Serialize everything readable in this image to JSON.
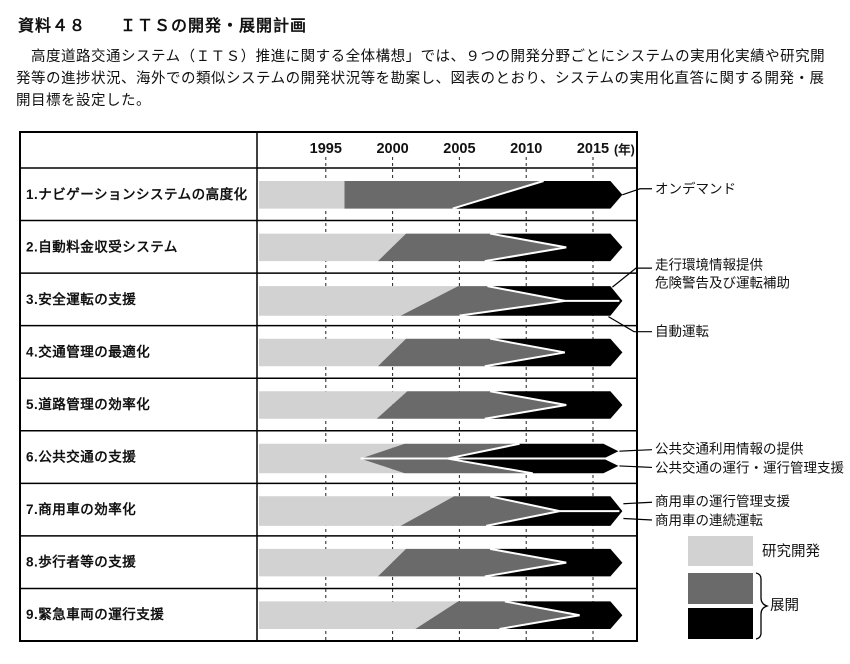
{
  "page": {
    "title": "資料４８　　ＩＴＳの開発・展開計画",
    "intro": "　高度道路交通システム（ＩＴＳ）推進に関する全体構想」では、９つの開発分野ごとにシステムの実用化実績や研究開発等の進捗状況、海外での類似システムの開発状況等を勘案し、図表のとおり、システムの実用化直答に関する開発・展開目標を設定した。"
  },
  "chart_data": {
    "type": "gantt",
    "title": "ＩＴＳの開発・展開計画（開発分野別タイムライン）",
    "x_axis": {
      "ticks": [
        1995,
        2000,
        2005,
        2010,
        2015
      ],
      "unit_label": "(年)",
      "range": [
        1990,
        2018
      ],
      "gridlines": "dashed"
    },
    "colors": {
      "research": "#d2d2d2",
      "deployment_mid": "#6a6a6a",
      "deployment_final": "#000000",
      "separator": "#ffffff"
    },
    "legend": {
      "items": [
        {
          "label": "研究開発",
          "color": "#d2d2d2"
        },
        {
          "label": "展開",
          "colors": [
            "#6a6a6a",
            "#000000"
          ]
        }
      ]
    },
    "rows": [
      {
        "label": "1.ナビゲーションシステムの高度化",
        "shape": "phase",
        "research": {
          "start": 1990,
          "end_top": 1996.4,
          "end_bottom": 1996.4
        },
        "deployment_black": {
          "start_top": 2011.3,
          "start_bottom": 2004.5
        },
        "end": 2017.2,
        "callouts": [
          "オンデマンド"
        ]
      },
      {
        "label": "2.自動料金収受システム",
        "shape": "wedge",
        "research": {
          "start": 1990,
          "end_top": 2001.0,
          "end_bottom": 1998.9
        },
        "deployment_black": {
          "start_top": 2007.3,
          "start_bottom": 2006.9,
          "wedge_tip": 2013.0
        },
        "end": 2017.2,
        "callouts": []
      },
      {
        "label": "3.安全運転の支援",
        "shape": "wedge-split",
        "research": {
          "start": 1990,
          "end_top": 2004.9,
          "end_bottom": 2000.6
        },
        "deployment_black": {
          "start_top": 2007.1,
          "start_bottom": 2005.0,
          "wedge_tip": 2012.9
        },
        "end": 2017.2,
        "callouts": [
          "走行環境情報提供",
          "危険警告及び運転補助",
          "自動運転"
        ]
      },
      {
        "label": "4.交通管理の最適化",
        "shape": "wedge",
        "research": {
          "start": 1990,
          "end_top": 2001.0,
          "end_bottom": 1998.9
        },
        "deployment_black": {
          "start_top": 2007.3,
          "start_bottom": 2006.9,
          "wedge_tip": 2012.9
        },
        "end": 2017.2,
        "callouts": []
      },
      {
        "label": "5.道路管理の効率化",
        "shape": "wedge",
        "research": {
          "start": 1990,
          "end_top": 2001.1,
          "end_bottom": 1998.8
        },
        "deployment_black": {
          "start_top": 2007.3,
          "start_bottom": 2006.9,
          "wedge_tip": 2013.0
        },
        "end": 2017.2,
        "callouts": []
      },
      {
        "label": "6.公共交通の支援",
        "shape": "double",
        "research": {
          "start": 1990,
          "end_mid": 1997.6,
          "end_outer": 2000.9
        },
        "deployment_black": {
          "start_mid": 2004.1,
          "start_outer_top": 2009.5,
          "start_outer_bottom": 2010.5
        },
        "end": 2016.9,
        "callouts": [
          "公共交通利用情報の提供",
          "公共交通の運行・運行管理支援"
        ]
      },
      {
        "label": "7.商用車の効率化",
        "shape": "wedge-split",
        "research": {
          "start": 1990,
          "end_top": 2004.6,
          "end_bottom": 2000.6
        },
        "deployment_black": {
          "start_top": 2007.3,
          "start_bottom": 2007.0,
          "wedge_tip": 2012.5
        },
        "end": 2017.2,
        "callouts": [
          "商用車の運行管理支援",
          "商用車の連続運転"
        ]
      },
      {
        "label": "8.歩行者等の支援",
        "shape": "wedge",
        "research": {
          "start": 1990,
          "end_top": 2001.0,
          "end_bottom": 1998.9
        },
        "deployment_black": {
          "start_top": 2007.3,
          "start_bottom": 2006.9,
          "wedge_tip": 2013.0
        },
        "end": 2017.2,
        "callouts": []
      },
      {
        "label": "9.緊急車両の運行支援",
        "shape": "wedge",
        "research": {
          "start": 1990,
          "end_top": 2004.9,
          "end_bottom": 2001.7
        },
        "deployment_black": {
          "start_top": 2008.4,
          "start_bottom": 2008.0,
          "wedge_tip": 2014.0
        },
        "end": 2017.2,
        "callouts": []
      }
    ]
  }
}
